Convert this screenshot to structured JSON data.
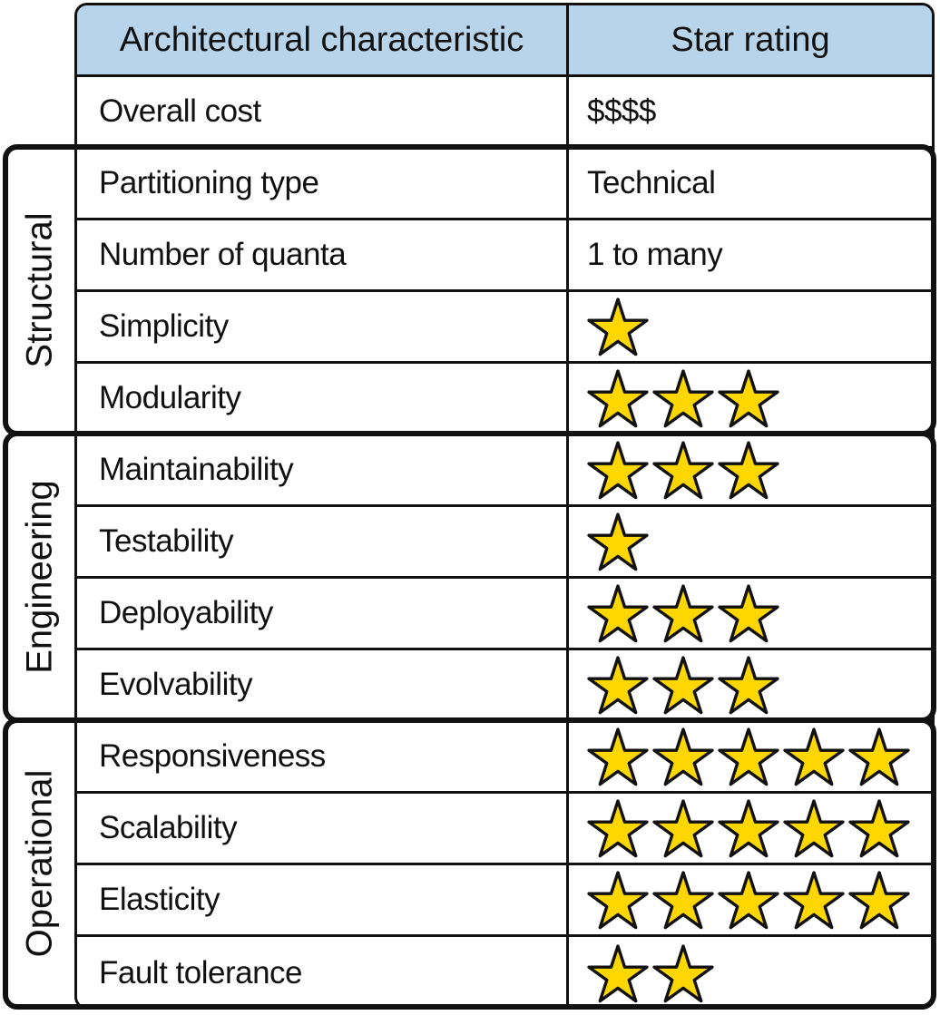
{
  "table": {
    "headers": [
      "Architectural characteristic",
      "Star rating"
    ],
    "rows": [
      {
        "characteristic": "Overall cost",
        "rating_text": "$$$$"
      },
      {
        "characteristic": "Partitioning type",
        "rating_text": "Technical"
      },
      {
        "characteristic": "Number of quanta",
        "rating_text": "1 to many"
      },
      {
        "characteristic": "Simplicity",
        "stars": 1
      },
      {
        "characteristic": "Modularity",
        "stars": 3
      },
      {
        "characteristic": "Maintainability",
        "stars": 3
      },
      {
        "characteristic": "Testability",
        "stars": 1
      },
      {
        "characteristic": "Deployability",
        "stars": 3
      },
      {
        "characteristic": "Evolvability",
        "stars": 3
      },
      {
        "characteristic": "Responsiveness",
        "stars": 5
      },
      {
        "characteristic": "Scalability",
        "stars": 5
      },
      {
        "characteristic": "Elasticity",
        "stars": 5
      },
      {
        "characteristic": "Fault tolerance",
        "stars": 2
      }
    ]
  },
  "groups": [
    {
      "label": "Structural",
      "first_row": 1,
      "last_row": 4
    },
    {
      "label": "Engineering",
      "first_row": 5,
      "last_row": 8
    },
    {
      "label": "Operational",
      "first_row": 9,
      "last_row": 12
    }
  ],
  "colors": {
    "header_bg": "#b8d4ea",
    "star_fill": "#ffd700",
    "border": "#111111"
  },
  "icons": {
    "rating_icon": "star-icon"
  }
}
